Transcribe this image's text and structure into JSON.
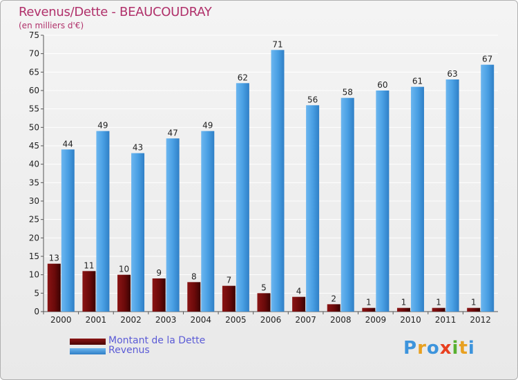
{
  "header": {
    "title": "Revenus/Dette - BEAUCOUDRAY",
    "subtitle": "(en milliers d'€)"
  },
  "colors": {
    "title": "#b0306a",
    "dette": "#6b0a0a",
    "revenus": "#3d94dc",
    "legend_text": "#5b5bd6"
  },
  "legend": {
    "items": [
      {
        "label": "Montant de la Dette",
        "color": "#6b0a0a"
      },
      {
        "label": "Revenus",
        "color": "#3d94dc"
      }
    ]
  },
  "logo": {
    "text": "Proxiti"
  },
  "chart_data": {
    "type": "bar",
    "title": "Revenus/Dette - BEAUCOUDRAY",
    "subtitle": "(en milliers d'€)",
    "xlabel": "",
    "ylabel": "",
    "ylim": [
      0,
      75
    ],
    "yticks": [
      0,
      5,
      10,
      15,
      20,
      25,
      30,
      35,
      40,
      45,
      50,
      55,
      60,
      65,
      70,
      75
    ],
    "grid": true,
    "legend_position": "bottom-left",
    "categories": [
      "2000",
      "2001",
      "2002",
      "2003",
      "2004",
      "2005",
      "2006",
      "2007",
      "2008",
      "2009",
      "2010",
      "2011",
      "2012"
    ],
    "series": [
      {
        "name": "Montant de la Dette",
        "values": [
          13,
          11,
          10,
          9,
          8,
          7,
          5,
          4,
          2,
          1,
          1,
          1,
          1
        ]
      },
      {
        "name": "Revenus",
        "values": [
          44,
          49,
          43,
          47,
          49,
          62,
          71,
          56,
          58,
          60,
          61,
          63,
          67
        ]
      }
    ]
  }
}
